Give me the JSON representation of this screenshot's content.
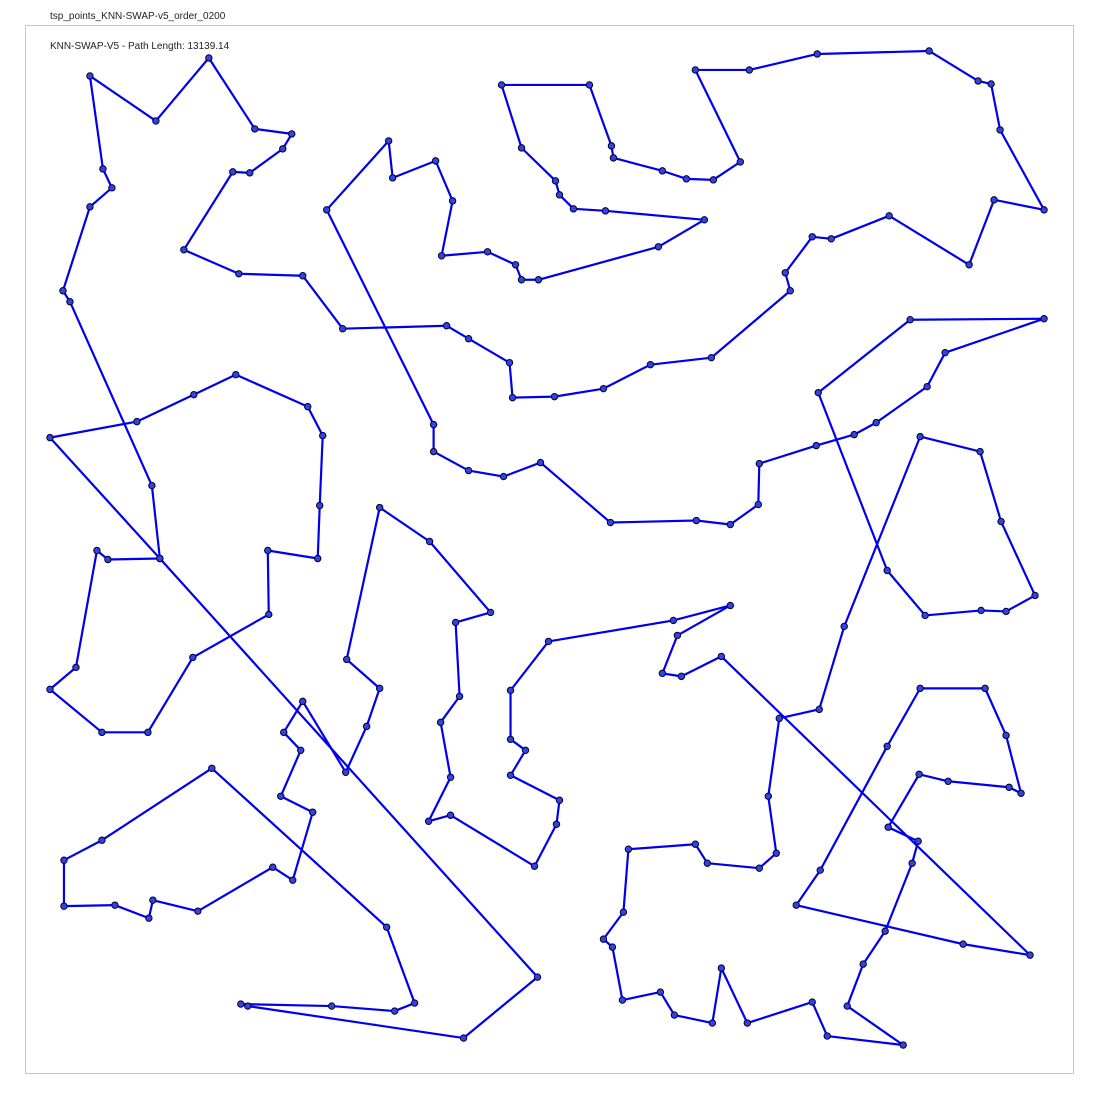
{
  "window": {
    "title": "tsp_points_KNN-SWAP-v5_order_0200"
  },
  "colors": {
    "route": "#0000ee",
    "node_fill": "#3344dd",
    "node_stroke": "#000033",
    "frame": "#c8c8c8"
  },
  "chart_data": {
    "type": "line",
    "title": "KNN-SWAP-V5 - Path Length: 13139.14",
    "xlabel": "",
    "ylabel": "",
    "grid": false,
    "legend": "none",
    "xlim": [
      25,
      1075
    ],
    "ylim": [
      25,
      1075
    ],
    "y_axis": "inverted",
    "closed": true,
    "route": [
      [
        90,
        76
      ],
      [
        156,
        121
      ],
      [
        209,
        58
      ],
      [
        255,
        129
      ],
      [
        292,
        134
      ],
      [
        283,
        149
      ],
      [
        250,
        173
      ],
      [
        233,
        172
      ],
      [
        184,
        250
      ],
      [
        239,
        274
      ],
      [
        303,
        276
      ],
      [
        343,
        329
      ],
      [
        447,
        326
      ],
      [
        469,
        339
      ],
      [
        510,
        363
      ],
      [
        513,
        398
      ],
      [
        555,
        397
      ],
      [
        604,
        389
      ],
      [
        651,
        365
      ],
      [
        712,
        358
      ],
      [
        791,
        291
      ],
      [
        786,
        273
      ],
      [
        813,
        237
      ],
      [
        832,
        239
      ],
      [
        890,
        216
      ],
      [
        970,
        265
      ],
      [
        995,
        200
      ],
      [
        1045,
        210
      ],
      [
        1001,
        130
      ],
      [
        992,
        84
      ],
      [
        979,
        81
      ],
      [
        930,
        51
      ],
      [
        818,
        54
      ],
      [
        750,
        70
      ],
      [
        696,
        70
      ],
      [
        741,
        162
      ],
      [
        714,
        180
      ],
      [
        687,
        179
      ],
      [
        663,
        171
      ],
      [
        614,
        158
      ],
      [
        612,
        146
      ],
      [
        590,
        85
      ],
      [
        502,
        85
      ],
      [
        522,
        148
      ],
      [
        556,
        181
      ],
      [
        560,
        195
      ],
      [
        574,
        209
      ],
      [
        606,
        211
      ],
      [
        705,
        220
      ],
      [
        659,
        247
      ],
      [
        539,
        280
      ],
      [
        522,
        280
      ],
      [
        516,
        265
      ],
      [
        488,
        252
      ],
      [
        442,
        256
      ],
      [
        453,
        201
      ],
      [
        436,
        161
      ],
      [
        393,
        178
      ],
      [
        389,
        141
      ],
      [
        327,
        210
      ],
      [
        434,
        425
      ],
      [
        434,
        452
      ],
      [
        469,
        471
      ],
      [
        504,
        477
      ],
      [
        541,
        463
      ],
      [
        611,
        523
      ],
      [
        697,
        521
      ],
      [
        731,
        525
      ],
      [
        759,
        505
      ],
      [
        760,
        464
      ],
      [
        817,
        446
      ],
      [
        855,
        435
      ],
      [
        877,
        423
      ],
      [
        928,
        387
      ],
      [
        946,
        353
      ],
      [
        1045,
        319
      ],
      [
        911,
        320
      ],
      [
        819,
        393
      ],
      [
        888,
        571
      ],
      [
        926,
        616
      ],
      [
        982,
        611
      ],
      [
        1007,
        612
      ],
      [
        1036,
        596
      ],
      [
        1002,
        522
      ],
      [
        981,
        452
      ],
      [
        921,
        437
      ],
      [
        845,
        627
      ],
      [
        820,
        710
      ],
      [
        780,
        719
      ],
      [
        769,
        797
      ],
      [
        777,
        854
      ],
      [
        760,
        869
      ],
      [
        708,
        864
      ],
      [
        696,
        845
      ],
      [
        629,
        850
      ],
      [
        624,
        913
      ],
      [
        604,
        940
      ],
      [
        613,
        948
      ],
      [
        623,
        1001
      ],
      [
        661,
        993
      ],
      [
        675,
        1016
      ],
      [
        713,
        1024
      ],
      [
        722,
        969
      ],
      [
        748,
        1024
      ],
      [
        813,
        1003
      ],
      [
        828,
        1037
      ],
      [
        904,
        1046
      ],
      [
        848,
        1007
      ],
      [
        864,
        965
      ],
      [
        886,
        932
      ],
      [
        913,
        864
      ],
      [
        919,
        842
      ],
      [
        889,
        828
      ],
      [
        920,
        775
      ],
      [
        949,
        782
      ],
      [
        1010,
        788
      ],
      [
        1022,
        794
      ],
      [
        1007,
        736
      ],
      [
        986,
        689
      ],
      [
        921,
        689
      ],
      [
        888,
        747
      ],
      [
        821,
        871
      ],
      [
        797,
        906
      ],
      [
        964,
        945
      ],
      [
        1031,
        956
      ],
      [
        722,
        657
      ],
      [
        682,
        677
      ],
      [
        663,
        674
      ],
      [
        678,
        636
      ],
      [
        731,
        606
      ],
      [
        674,
        621
      ],
      [
        549,
        642
      ],
      [
        511,
        691
      ],
      [
        511,
        740
      ],
      [
        526,
        751
      ],
      [
        511,
        776
      ],
      [
        560,
        801
      ],
      [
        557,
        825
      ],
      [
        535,
        867
      ],
      [
        451,
        816
      ],
      [
        429,
        822
      ],
      [
        451,
        778
      ],
      [
        441,
        723
      ],
      [
        460,
        697
      ],
      [
        456,
        623
      ],
      [
        491,
        613
      ],
      [
        430,
        542
      ],
      [
        380,
        508
      ],
      [
        347,
        660
      ],
      [
        380,
        689
      ],
      [
        367,
        727
      ],
      [
        346,
        773
      ],
      [
        303,
        702
      ],
      [
        284,
        733
      ],
      [
        301,
        751
      ],
      [
        281,
        797
      ],
      [
        313,
        813
      ],
      [
        293,
        881
      ],
      [
        273,
        868
      ],
      [
        198,
        912
      ],
      [
        153,
        901
      ],
      [
        149,
        919
      ],
      [
        115,
        906
      ],
      [
        64,
        907
      ],
      [
        64,
        861
      ],
      [
        102,
        841
      ],
      [
        212,
        769
      ],
      [
        387,
        928
      ],
      [
        415,
        1004
      ],
      [
        395,
        1012
      ],
      [
        332,
        1007
      ],
      [
        241,
        1005
      ],
      [
        248,
        1007
      ],
      [
        464,
        1039
      ],
      [
        538,
        978
      ],
      [
        160,
        559
      ],
      [
        108,
        560
      ],
      [
        97,
        551
      ],
      [
        76,
        668
      ],
      [
        50,
        690
      ],
      [
        102,
        733
      ],
      [
        148,
        733
      ],
      [
        193,
        658
      ],
      [
        269,
        615
      ],
      [
        268,
        551
      ],
      [
        318,
        559
      ],
      [
        320,
        506
      ],
      [
        323,
        436
      ],
      [
        308,
        407
      ],
      [
        236,
        375
      ],
      [
        194,
        395
      ],
      [
        137,
        422
      ],
      [
        50,
        438
      ],
      [
        160,
        559
      ],
      [
        152,
        486
      ],
      [
        70,
        302
      ],
      [
        63,
        291
      ],
      [
        90,
        207
      ],
      [
        112,
        188
      ],
      [
        103,
        169
      ]
    ]
  }
}
